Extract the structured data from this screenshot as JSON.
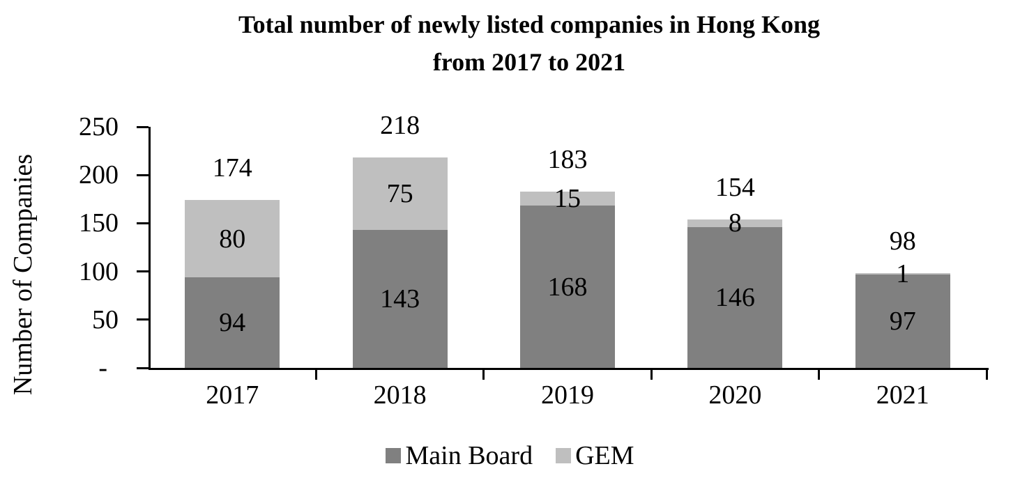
{
  "title": {
    "line1": "Total number of newly listed companies in Hong Kong",
    "line2": "from 2017 to 2021"
  },
  "y_axis": {
    "label": "Number of Companies",
    "ticks": [
      "250",
      "200",
      "150",
      "100",
      "50",
      "-"
    ]
  },
  "x_axis": {
    "categories": [
      "2017",
      "2018",
      "2019",
      "2020",
      "2021"
    ]
  },
  "legend": {
    "items": [
      {
        "label": "Main Board",
        "color": "#808080"
      },
      {
        "label": "GEM",
        "color": "#bfbfbf"
      }
    ]
  },
  "colors": {
    "main_board": "#808080",
    "gem": "#bfbfbf",
    "axis": "#000000",
    "text": "#000000",
    "background": "#ffffff"
  },
  "chart_data": {
    "type": "bar",
    "stacked": true,
    "title": "Total number of newly listed companies in Hong Kong from 2017 to 2021",
    "categories": [
      "2017",
      "2018",
      "2019",
      "2020",
      "2021"
    ],
    "series": [
      {
        "name": "Main Board",
        "color": "#808080",
        "values": [
          94,
          143,
          168,
          146,
          97
        ]
      },
      {
        "name": "GEM",
        "color": "#bfbfbf",
        "values": [
          80,
          75,
          15,
          8,
          1
        ]
      }
    ],
    "totals": [
      174,
      218,
      183,
      154,
      98
    ],
    "xlabel": "",
    "ylabel": "Number of Companies",
    "ylim": [
      0,
      250
    ],
    "ytick_step": 50,
    "zero_tick_label": "-",
    "grid": false,
    "legend_position": "bottom",
    "data_labels": "inside-center-and-total-above"
  }
}
